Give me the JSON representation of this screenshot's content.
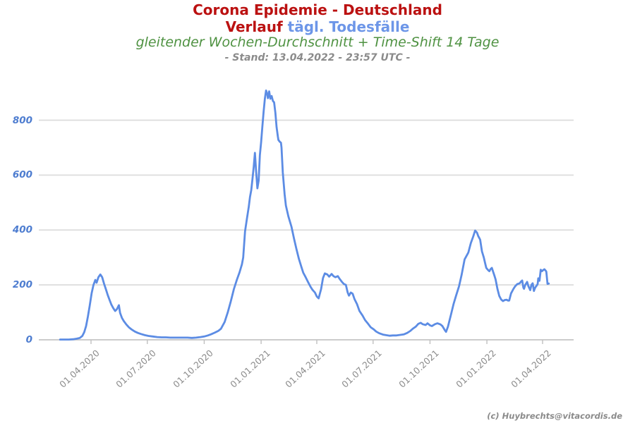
{
  "header": {
    "title": "Corona Epidemie - Deutschland",
    "subtitle_red": "Verlauf",
    "subtitle_blue": "tägl. Todesfälle",
    "method_line": "gleitender Wochen-Durchschnitt + Time-Shift 14 Tage",
    "stand_line": "- Stand: 13.04.2022 - 23:57 UTC -"
  },
  "footer": {
    "copyright": "(c) Huybrechts@vitacordis.de"
  },
  "colors": {
    "title_red": "#bb1111",
    "subtitle_blue": "#6d96e8",
    "method_green": "#4f9242",
    "gray_text": "#8b8b8b",
    "line_blue": "#5c8ce4",
    "ytick_blue": "#4e7dd0",
    "grid": "#dcdcdc",
    "zero_axis": "#c4c4c4",
    "tick_mark": "#c0c0c0",
    "background": "#ffffff"
  },
  "chart_data": {
    "type": "line",
    "title": "Corona Epidemie - Deutschland — Verlauf tägl. Todesfälle",
    "subtitle": "gleitender Wochen-Durchschnitt + Time-Shift 14 Tage",
    "as_of": "13.04.2022 - 23:57 UTC",
    "xlabel": "",
    "ylabel": "",
    "grid": true,
    "legend": false,
    "ylim": [
      0,
      940
    ],
    "y_ticks": [
      0,
      200,
      400,
      600,
      800
    ],
    "x_ticks": [
      {
        "label": "01.04.2020",
        "date": "2020-04-01"
      },
      {
        "label": "01.07.2020",
        "date": "2020-07-01"
      },
      {
        "label": "01.10.2020",
        "date": "2020-10-01"
      },
      {
        "label": "01.01.2021",
        "date": "2021-01-01"
      },
      {
        "label": "01.04.2021",
        "date": "2021-04-01"
      },
      {
        "label": "01.07.2021",
        "date": "2021-07-01"
      },
      {
        "label": "01.10.2021",
        "date": "2021-10-01"
      },
      {
        "label": "01.01.2022",
        "date": "2022-01-01"
      },
      {
        "label": "01.04.2022",
        "date": "2022-04-01"
      }
    ],
    "series": [
      {
        "name": "tägl. Todesfälle (gleitender Wochen-Durchschnitt, Time-Shift 14 Tage)",
        "points": [
          [
            "2020-02-11",
            1
          ],
          [
            "2020-02-18",
            1
          ],
          [
            "2020-02-25",
            1
          ],
          [
            "2020-03-03",
            2
          ],
          [
            "2020-03-09",
            4
          ],
          [
            "2020-03-14",
            7
          ],
          [
            "2020-03-18",
            14
          ],
          [
            "2020-03-21",
            28
          ],
          [
            "2020-03-24",
            50
          ],
          [
            "2020-03-27",
            85
          ],
          [
            "2020-03-30",
            125
          ],
          [
            "2020-04-02",
            170
          ],
          [
            "2020-04-05",
            200
          ],
          [
            "2020-04-08",
            218
          ],
          [
            "2020-04-10",
            208
          ],
          [
            "2020-04-13",
            228
          ],
          [
            "2020-04-16",
            238
          ],
          [
            "2020-04-19",
            228
          ],
          [
            "2020-04-22",
            205
          ],
          [
            "2020-04-25",
            185
          ],
          [
            "2020-04-28",
            163
          ],
          [
            "2020-05-01",
            145
          ],
          [
            "2020-05-04",
            128
          ],
          [
            "2020-05-07",
            115
          ],
          [
            "2020-05-10",
            105
          ],
          [
            "2020-05-13",
            112
          ],
          [
            "2020-05-16",
            126
          ],
          [
            "2020-05-18",
            98
          ],
          [
            "2020-05-21",
            80
          ],
          [
            "2020-05-24",
            68
          ],
          [
            "2020-05-28",
            56
          ],
          [
            "2020-06-01",
            46
          ],
          [
            "2020-06-06",
            37
          ],
          [
            "2020-06-11",
            30
          ],
          [
            "2020-06-16",
            25
          ],
          [
            "2020-06-21",
            21
          ],
          [
            "2020-06-27",
            17
          ],
          [
            "2020-07-03",
            14
          ],
          [
            "2020-07-10",
            12
          ],
          [
            "2020-07-17",
            10
          ],
          [
            "2020-07-24",
            9
          ],
          [
            "2020-07-31",
            9
          ],
          [
            "2020-08-07",
            8
          ],
          [
            "2020-08-14",
            8
          ],
          [
            "2020-08-21",
            8
          ],
          [
            "2020-08-28",
            8
          ],
          [
            "2020-09-04",
            8
          ],
          [
            "2020-09-11",
            7
          ],
          [
            "2020-09-18",
            8
          ],
          [
            "2020-09-25",
            10
          ],
          [
            "2020-10-01",
            12
          ],
          [
            "2020-10-07",
            16
          ],
          [
            "2020-10-12",
            20
          ],
          [
            "2020-10-18",
            26
          ],
          [
            "2020-10-24",
            33
          ],
          [
            "2020-10-28",
            40
          ],
          [
            "2020-11-03",
            65
          ],
          [
            "2020-11-08",
            100
          ],
          [
            "2020-11-13",
            140
          ],
          [
            "2020-11-18",
            185
          ],
          [
            "2020-11-23",
            220
          ],
          [
            "2020-11-27",
            245
          ],
          [
            "2020-12-01",
            275
          ],
          [
            "2020-12-03",
            300
          ],
          [
            "2020-12-06",
            395
          ],
          [
            "2020-12-09",
            440
          ],
          [
            "2020-12-12",
            485
          ],
          [
            "2020-12-14",
            520
          ],
          [
            "2020-12-16",
            545
          ],
          [
            "2020-12-18",
            585
          ],
          [
            "2020-12-20",
            630
          ],
          [
            "2020-12-22",
            681
          ],
          [
            "2020-12-24",
            610
          ],
          [
            "2020-12-26",
            552
          ],
          [
            "2020-12-28",
            580
          ],
          [
            "2020-12-30",
            672
          ],
          [
            "2021-01-01",
            720
          ],
          [
            "2021-01-03",
            775
          ],
          [
            "2021-01-05",
            830
          ],
          [
            "2021-01-07",
            878
          ],
          [
            "2021-01-09",
            908
          ],
          [
            "2021-01-11",
            895
          ],
          [
            "2021-01-12",
            880
          ],
          [
            "2021-01-14",
            905
          ],
          [
            "2021-01-16",
            878
          ],
          [
            "2021-01-18",
            888
          ],
          [
            "2021-01-20",
            870
          ],
          [
            "2021-01-22",
            865
          ],
          [
            "2021-01-24",
            827
          ],
          [
            "2021-01-26",
            775
          ],
          [
            "2021-01-28",
            741
          ],
          [
            "2021-01-29",
            728
          ],
          [
            "2021-01-31",
            722
          ],
          [
            "2021-02-02",
            718
          ],
          [
            "2021-02-03",
            700
          ],
          [
            "2021-02-05",
            610
          ],
          [
            "2021-02-08",
            530
          ],
          [
            "2021-02-10",
            489
          ],
          [
            "2021-02-14",
            450
          ],
          [
            "2021-02-19",
            412
          ],
          [
            "2021-02-23",
            370
          ],
          [
            "2021-02-27",
            331
          ],
          [
            "2021-03-03",
            295
          ],
          [
            "2021-03-07",
            266
          ],
          [
            "2021-03-10",
            245
          ],
          [
            "2021-03-14",
            228
          ],
          [
            "2021-03-18",
            210
          ],
          [
            "2021-03-22",
            193
          ],
          [
            "2021-03-25",
            182
          ],
          [
            "2021-03-29",
            172
          ],
          [
            "2021-04-01",
            158
          ],
          [
            "2021-04-04",
            151
          ],
          [
            "2021-04-08",
            185
          ],
          [
            "2021-04-11",
            225
          ],
          [
            "2021-04-14",
            242
          ],
          [
            "2021-04-18",
            238
          ],
          [
            "2021-04-21",
            230
          ],
          [
            "2021-04-25",
            240
          ],
          [
            "2021-04-28",
            232
          ],
          [
            "2021-05-01",
            228
          ],
          [
            "2021-05-05",
            232
          ],
          [
            "2021-05-08",
            222
          ],
          [
            "2021-05-12",
            210
          ],
          [
            "2021-05-15",
            203
          ],
          [
            "2021-05-18",
            200
          ],
          [
            "2021-05-21",
            172
          ],
          [
            "2021-05-23",
            161
          ],
          [
            "2021-05-26",
            172
          ],
          [
            "2021-05-29",
            168
          ],
          [
            "2021-06-01",
            148
          ],
          [
            "2021-06-05",
            130
          ],
          [
            "2021-06-09",
            105
          ],
          [
            "2021-06-14",
            88
          ],
          [
            "2021-06-18",
            72
          ],
          [
            "2021-06-23",
            58
          ],
          [
            "2021-06-27",
            46
          ],
          [
            "2021-07-02",
            38
          ],
          [
            "2021-07-06",
            30
          ],
          [
            "2021-07-11",
            24
          ],
          [
            "2021-07-17",
            19
          ],
          [
            "2021-07-22",
            17
          ],
          [
            "2021-07-28",
            15
          ],
          [
            "2021-08-02",
            16
          ],
          [
            "2021-08-08",
            16
          ],
          [
            "2021-08-14",
            18
          ],
          [
            "2021-08-20",
            20
          ],
          [
            "2021-08-25",
            25
          ],
          [
            "2021-08-30",
            32
          ],
          [
            "2021-09-03",
            40
          ],
          [
            "2021-09-08",
            48
          ],
          [
            "2021-09-12",
            58
          ],
          [
            "2021-09-16",
            62
          ],
          [
            "2021-09-19",
            57
          ],
          [
            "2021-09-24",
            54
          ],
          [
            "2021-09-27",
            60
          ],
          [
            "2021-10-01",
            53
          ],
          [
            "2021-10-04",
            50
          ],
          [
            "2021-10-09",
            57
          ],
          [
            "2021-10-13",
            60
          ],
          [
            "2021-10-18",
            56
          ],
          [
            "2021-10-21",
            50
          ],
          [
            "2021-10-25",
            35
          ],
          [
            "2021-10-27",
            29
          ],
          [
            "2021-10-30",
            48
          ],
          [
            "2021-11-04",
            92
          ],
          [
            "2021-11-08",
            130
          ],
          [
            "2021-11-12",
            160
          ],
          [
            "2021-11-17",
            195
          ],
          [
            "2021-11-21",
            236
          ],
          [
            "2021-11-26",
            293
          ],
          [
            "2021-12-02",
            318
          ],
          [
            "2021-12-06",
            352
          ],
          [
            "2021-12-10",
            377
          ],
          [
            "2021-12-13",
            398
          ],
          [
            "2021-12-16",
            390
          ],
          [
            "2021-12-18",
            378
          ],
          [
            "2021-12-21",
            365
          ],
          [
            "2021-12-24",
            322
          ],
          [
            "2021-12-27",
            300
          ],
          [
            "2021-12-29",
            280
          ],
          [
            "2021-12-31",
            262
          ],
          [
            "2022-01-03",
            254
          ],
          [
            "2022-01-05",
            250
          ],
          [
            "2022-01-07",
            258
          ],
          [
            "2022-01-09",
            262
          ],
          [
            "2022-01-11",
            248
          ],
          [
            "2022-01-13",
            235
          ],
          [
            "2022-01-15",
            220
          ],
          [
            "2022-01-18",
            186
          ],
          [
            "2022-01-21",
            160
          ],
          [
            "2022-01-24",
            147
          ],
          [
            "2022-01-27",
            141
          ],
          [
            "2022-01-30",
            145
          ],
          [
            "2022-02-02",
            146
          ],
          [
            "2022-02-04",
            143
          ],
          [
            "2022-02-06",
            143
          ],
          [
            "2022-02-09",
            169
          ],
          [
            "2022-02-13",
            186
          ],
          [
            "2022-02-16",
            196
          ],
          [
            "2022-02-19",
            203
          ],
          [
            "2022-02-23",
            206
          ],
          [
            "2022-02-25",
            212
          ],
          [
            "2022-02-27",
            216
          ],
          [
            "2022-03-01",
            190
          ],
          [
            "2022-03-02",
            186
          ],
          [
            "2022-03-04",
            200
          ],
          [
            "2022-03-07",
            211
          ],
          [
            "2022-03-09",
            196
          ],
          [
            "2022-03-12",
            181
          ],
          [
            "2022-03-14",
            200
          ],
          [
            "2022-03-16",
            206
          ],
          [
            "2022-03-18",
            178
          ],
          [
            "2022-03-20",
            190
          ],
          [
            "2022-03-22",
            196
          ],
          [
            "2022-03-24",
            203
          ],
          [
            "2022-03-25",
            224
          ],
          [
            "2022-03-27",
            215
          ],
          [
            "2022-03-29",
            255
          ],
          [
            "2022-03-31",
            250
          ],
          [
            "2022-04-02",
            254
          ],
          [
            "2022-04-04",
            257
          ],
          [
            "2022-04-06",
            252
          ],
          [
            "2022-04-07",
            248
          ],
          [
            "2022-04-09",
            204
          ],
          [
            "2022-04-11",
            205
          ]
        ]
      }
    ]
  }
}
